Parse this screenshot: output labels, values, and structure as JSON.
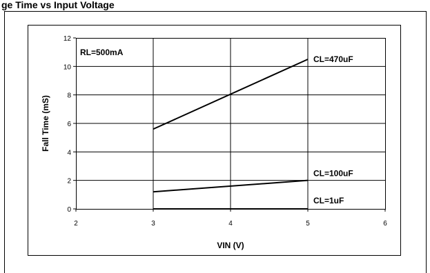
{
  "page_heading": "ge Time vs Input Voltage",
  "chart_data": {
    "type": "line",
    "title": "",
    "xlabel": "VIN (V)",
    "ylabel": "Fall Time (mS)",
    "xlim": [
      2,
      6
    ],
    "ylim": [
      0,
      12
    ],
    "x_ticks": [
      "2",
      "3",
      "4",
      "5",
      "6"
    ],
    "y_ticks": [
      "0",
      "2",
      "4",
      "6",
      "8",
      "10",
      "12"
    ],
    "grid": true,
    "legend": "none",
    "annotation": "RL=500mA",
    "series": [
      {
        "name": "CL=470uF",
        "x": [
          3,
          5
        ],
        "values": [
          5.6,
          10.5
        ]
      },
      {
        "name": "CL=100uF",
        "x": [
          3,
          5
        ],
        "values": [
          1.2,
          2.0
        ]
      },
      {
        "name": "CL=1uF",
        "x": [
          3,
          5
        ],
        "values": [
          0.0,
          0.0
        ]
      }
    ],
    "line_color": "#000000"
  }
}
